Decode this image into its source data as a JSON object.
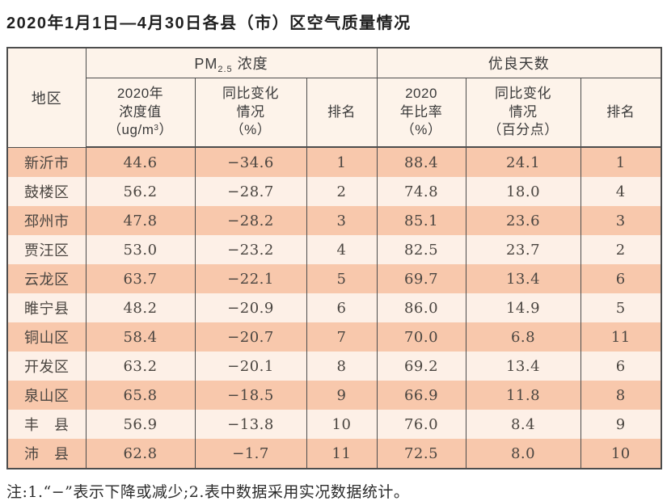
{
  "title": "2020年1月1日—4月30日各县（市）区空气质量情况",
  "table": {
    "header": {
      "region": "地区",
      "pm25_group": {
        "prefix": "PM",
        "sub": "2.5",
        "suffix": " 浓度"
      },
      "good_days_group": "优良天数",
      "pm25_value": {
        "lines": "2020年\n浓度值",
        "unit_prefix": "（ug/m",
        "unit_sup": "3",
        "unit_suffix": "）"
      },
      "pm25_change": "同比变化\n情况\n（%）",
      "pm25_rank": "排名",
      "good_rate": "2020\n年比率\n（%）",
      "good_change": "同比变化\n情况\n（百分点）",
      "good_rank": "排名"
    },
    "rows": [
      {
        "region": "新沂市",
        "pm25": "44.6",
        "pm25_change": "−34.6",
        "pm25_rank": "1",
        "rate": "88.4",
        "rate_change": "24.1",
        "rate_rank": "1"
      },
      {
        "region": "鼓楼区",
        "pm25": "56.2",
        "pm25_change": "−28.7",
        "pm25_rank": "2",
        "rate": "74.8",
        "rate_change": "18.0",
        "rate_rank": "4"
      },
      {
        "region": "邳州市",
        "pm25": "47.8",
        "pm25_change": "−28.2",
        "pm25_rank": "3",
        "rate": "85.1",
        "rate_change": "23.6",
        "rate_rank": "3"
      },
      {
        "region": "贾汪区",
        "pm25": "53.0",
        "pm25_change": "−23.2",
        "pm25_rank": "4",
        "rate": "82.5",
        "rate_change": "23.7",
        "rate_rank": "2"
      },
      {
        "region": "云龙区",
        "pm25": "63.7",
        "pm25_change": "−22.1",
        "pm25_rank": "5",
        "rate": "69.7",
        "rate_change": "13.4",
        "rate_rank": "6"
      },
      {
        "region": "睢宁县",
        "pm25": "48.2",
        "pm25_change": "−20.9",
        "pm25_rank": "6",
        "rate": "86.0",
        "rate_change": "14.9",
        "rate_rank": "5"
      },
      {
        "region": "铜山区",
        "pm25": "58.4",
        "pm25_change": "−20.7",
        "pm25_rank": "7",
        "rate": "70.0",
        "rate_change": "6.8",
        "rate_rank": "11"
      },
      {
        "region": "开发区",
        "pm25": "63.2",
        "pm25_change": "−20.1",
        "pm25_rank": "8",
        "rate": "69.2",
        "rate_change": "13.4",
        "rate_rank": "6"
      },
      {
        "region": "泉山区",
        "pm25": "65.8",
        "pm25_change": "−18.5",
        "pm25_rank": "9",
        "rate": "66.9",
        "rate_change": "11.8",
        "rate_rank": "8"
      },
      {
        "region": "丰　县",
        "pm25": "56.9",
        "pm25_change": "−13.8",
        "pm25_rank": "10",
        "rate": "76.0",
        "rate_change": "8.4",
        "rate_rank": "9"
      },
      {
        "region": "沛　县",
        "pm25": "62.8",
        "pm25_change": "−1.7",
        "pm25_rank": "11",
        "rate": "72.5",
        "rate_change": "8.0",
        "rate_rank": "10"
      }
    ]
  },
  "note": "注:1.“−”表示下降或减少;2.表中数据采用实况数据统计。",
  "colors": {
    "row_stripe_salmon": "#f8c8ac",
    "row_stripe_light": "#fdf0e7",
    "header_background": "#fdf3ea",
    "table_border": "#4d4d4d"
  }
}
